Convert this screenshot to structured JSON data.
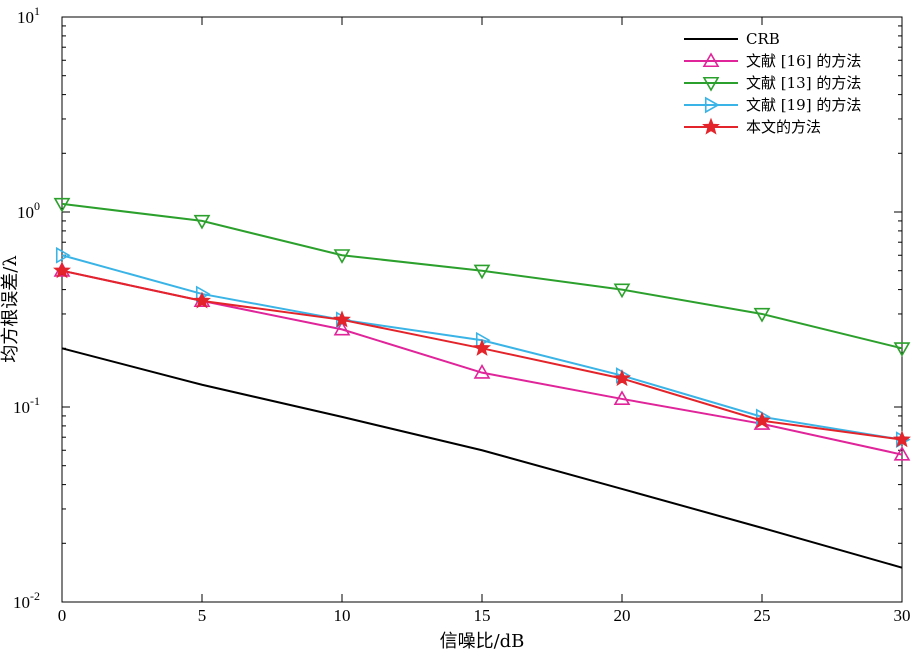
{
  "chart_data": {
    "type": "line",
    "xlabel": "信噪比/dB",
    "ylabel": "均方根误差/λ",
    "x": [
      0,
      5,
      10,
      15,
      20,
      25,
      30
    ],
    "xlim": [
      0,
      30
    ],
    "ylim": [
      0.01,
      10
    ],
    "yscale": "log",
    "xticks": [
      "0",
      "5",
      "10",
      "15",
      "20",
      "25",
      "30"
    ],
    "yticks": [
      {
        "base": "10",
        "exp": "-2",
        "value": 0.01
      },
      {
        "base": "10",
        "exp": "-1",
        "value": 0.1
      },
      {
        "base": "10",
        "exp": "0",
        "value": 1
      },
      {
        "base": "10",
        "exp": "1",
        "value": 10
      }
    ],
    "grid": false,
    "legend_position": "top-right",
    "series": [
      {
        "name": "CRB",
        "color": "#000000",
        "marker": "none",
        "values": [
          0.2,
          0.13,
          0.089,
          0.06,
          0.038,
          0.024,
          0.015
        ]
      },
      {
        "name": "文献 [16] 的方法",
        "color": "#e0249a",
        "marker": "triangle-up",
        "values": [
          0.5,
          0.35,
          0.25,
          0.15,
          0.11,
          0.082,
          0.057
        ]
      },
      {
        "name": "文献 [13] 的方法",
        "color": "#2ca02c",
        "marker": "triangle-down",
        "values": [
          1.1,
          0.9,
          0.6,
          0.5,
          0.4,
          0.3,
          0.2
        ]
      },
      {
        "name": "文献 [19] 的方法",
        "color": "#3ab4e6",
        "marker": "triangle-right",
        "values": [
          0.6,
          0.38,
          0.28,
          0.22,
          0.145,
          0.089,
          0.068
        ]
      },
      {
        "name": "本文的方法",
        "color": "#e3242b",
        "marker": "star",
        "values": [
          0.5,
          0.35,
          0.28,
          0.2,
          0.14,
          0.085,
          0.068
        ]
      }
    ]
  }
}
